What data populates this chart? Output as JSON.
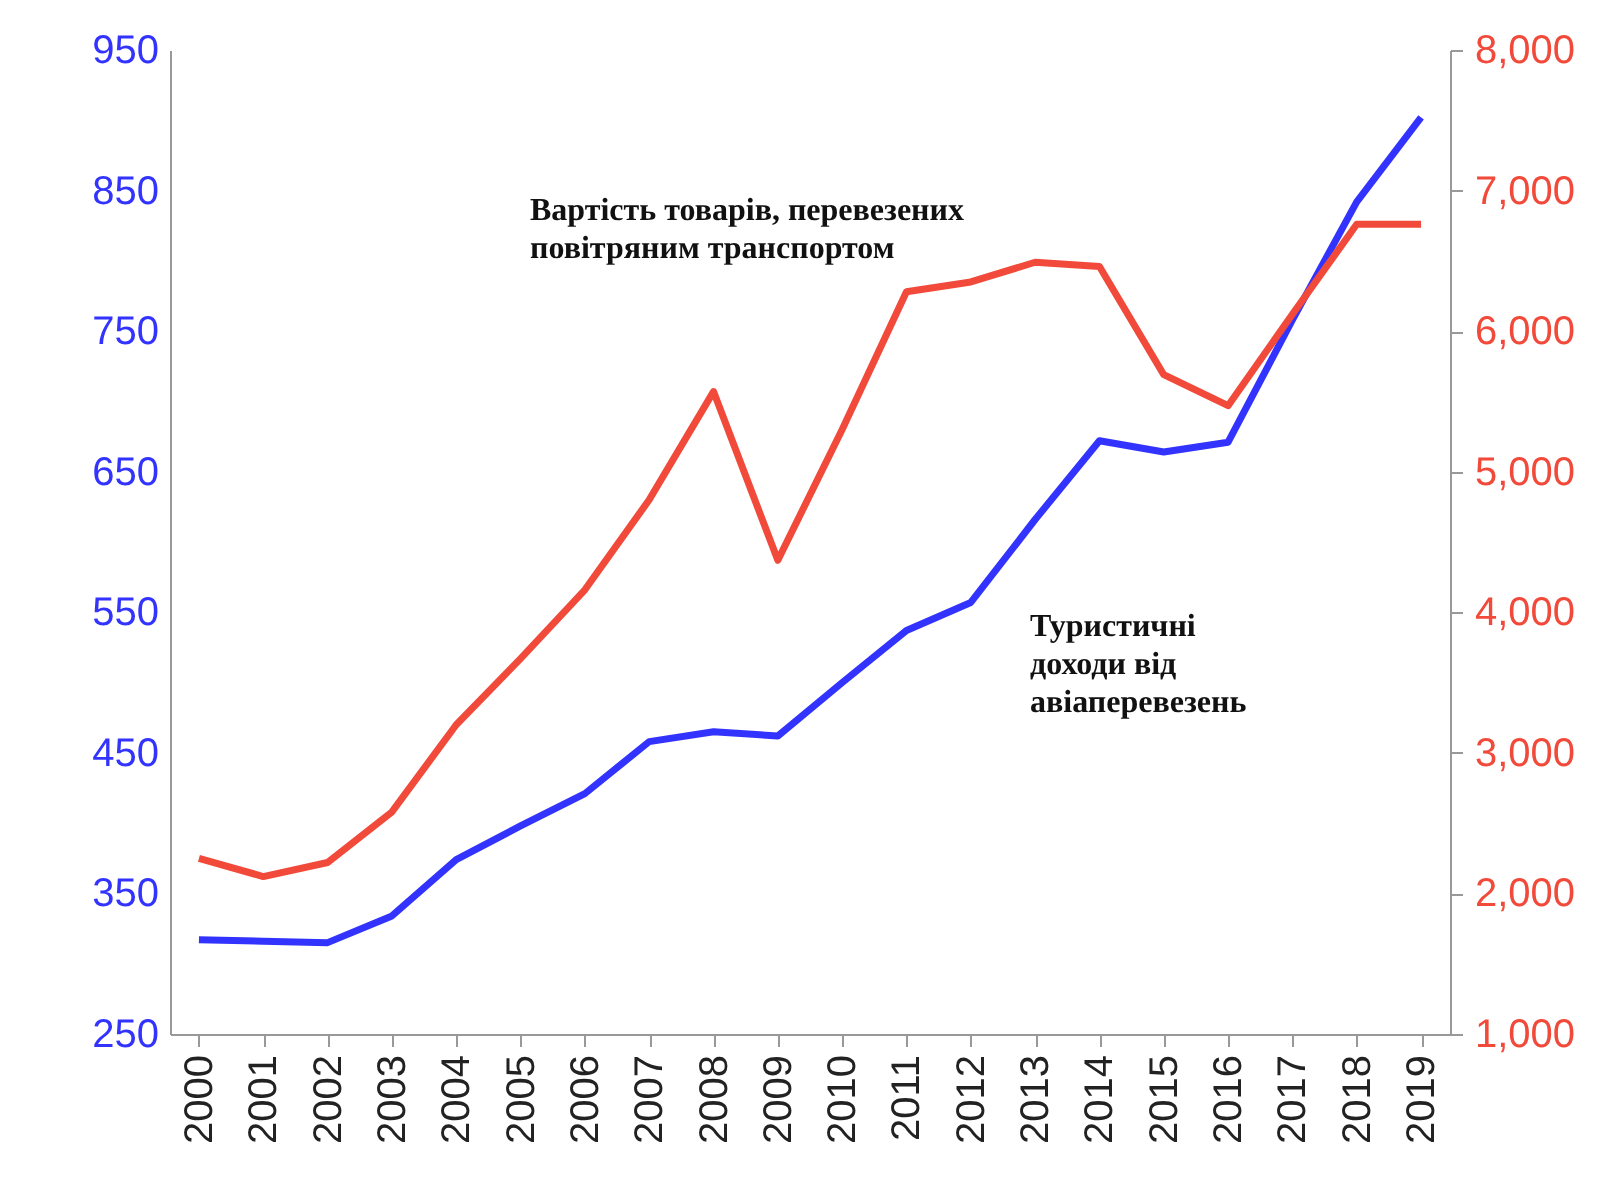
{
  "chart_data": {
    "type": "line",
    "categories": [
      "2000",
      "2001",
      "2002",
      "2003",
      "2004",
      "2005",
      "2006",
      "2007",
      "2008",
      "2009",
      "2010",
      "2011",
      "2012",
      "2013",
      "2014",
      "2015",
      "2016",
      "2017",
      "2018",
      "2019"
    ],
    "series": [
      {
        "name": "Туристичні доходи від авіаперевезень",
        "color": "#3333ff",
        "values": [
          317,
          316,
          315,
          334,
          374,
          398,
          421,
          458,
          465,
          462,
          500,
          537,
          557,
          616,
          672,
          664,
          671,
          758,
          842,
          902
        ]
      },
      {
        "name": "Вартість товарів, перевезених повітряним транспортом",
        "color": "#f24a3a",
        "axis": "y2",
        "values": [
          2250,
          2120,
          2220,
          2580,
          3200,
          3670,
          4160,
          4800,
          5570,
          4370,
          5300,
          6280,
          6350,
          6490,
          6460,
          5690,
          5470,
          6120,
          6760,
          6760
        ]
      }
    ],
    "ylim": [
      250,
      950
    ],
    "yticks": [
      250,
      350,
      450,
      550,
      650,
      750,
      850,
      950
    ],
    "y2lim": [
      1000,
      8000
    ],
    "y2ticks": [
      {
        "value": 1000,
        "label": "1,000"
      },
      {
        "value": 2000,
        "label": "2,000"
      },
      {
        "value": 3000,
        "label": "3,000"
      },
      {
        "value": 4000,
        "label": "4,000"
      },
      {
        "value": 5000,
        "label": "5,000"
      },
      {
        "value": 6000,
        "label": "6,000"
      },
      {
        "value": 7000,
        "label": "7,000"
      },
      {
        "value": 8000,
        "label": "8,000"
      }
    ],
    "grid": false,
    "marker": "none",
    "line_style": "solid"
  }
}
